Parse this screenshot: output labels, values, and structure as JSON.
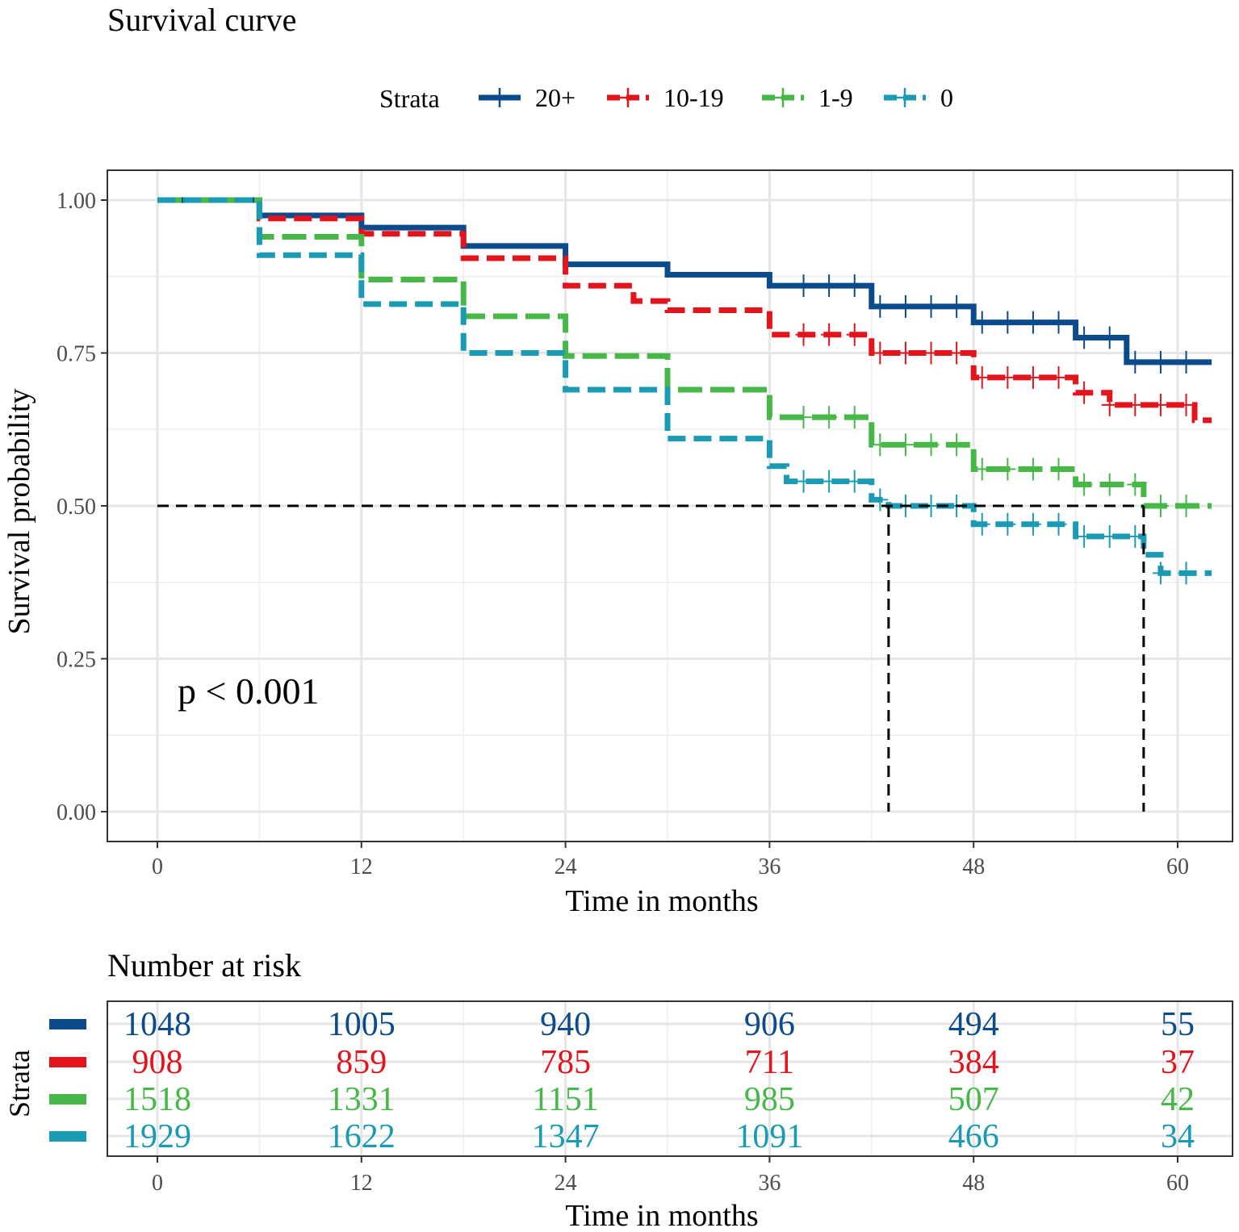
{
  "chart_data": [
    {
      "type": "line",
      "subtype": "kaplan-meier",
      "title": "Survival curve",
      "xlabel": "Time in months",
      "ylabel": "Survival probability",
      "xlim": [
        0,
        62
      ],
      "ylim": [
        0,
        1
      ],
      "xticks": [
        "0",
        "12",
        "24",
        "36",
        "48",
        "60"
      ],
      "yticks": [
        "0.00",
        "0.25",
        "0.50",
        "0.75",
        "1.00"
      ],
      "grid": true,
      "legend": {
        "title": "Strata",
        "position": "top"
      },
      "annotation": "p < 0.001",
      "median_reference": {
        "y": 0.5,
        "x_values": [
          43,
          58
        ]
      },
      "series": [
        {
          "name": "20+",
          "color": "#0b4a8b",
          "dash": "solid",
          "x": [
            0,
            6,
            12,
            18,
            24,
            30,
            36,
            42,
            48,
            54,
            57,
            62
          ],
          "y": [
            1.0,
            0.975,
            0.955,
            0.925,
            0.895,
            0.878,
            0.86,
            0.826,
            0.8,
            0.775,
            0.735,
            0.735
          ]
        },
        {
          "name": "10-19",
          "color": "#e3141c",
          "dash": "dashed",
          "x": [
            0,
            6,
            12,
            18,
            24,
            28,
            30,
            36,
            42,
            48,
            54,
            56,
            60,
            61,
            62
          ],
          "y": [
            1.0,
            0.97,
            0.945,
            0.905,
            0.86,
            0.835,
            0.82,
            0.78,
            0.75,
            0.71,
            0.685,
            0.665,
            0.665,
            0.64,
            0.64
          ]
        },
        {
          "name": "1-9",
          "color": "#47b848",
          "dash": "longdash",
          "x": [
            0,
            6,
            12,
            18,
            24,
            30,
            36,
            42,
            48,
            54,
            58,
            62
          ],
          "y": [
            1.0,
            0.94,
            0.87,
            0.81,
            0.745,
            0.69,
            0.645,
            0.6,
            0.56,
            0.535,
            0.5,
            0.5
          ]
        },
        {
          "name": "0",
          "color": "#1b9ab3",
          "dash": "dashed",
          "x": [
            0,
            6,
            12,
            18,
            24,
            30,
            36,
            37,
            42,
            43,
            48,
            54,
            58,
            59,
            62
          ],
          "y": [
            1.0,
            0.91,
            0.83,
            0.75,
            0.69,
            0.61,
            0.565,
            0.54,
            0.51,
            0.5,
            0.47,
            0.45,
            0.42,
            0.39,
            0.39
          ]
        }
      ]
    },
    {
      "type": "table",
      "title": "Number at risk",
      "xlabel": "Time in months",
      "ylabel": "Strata",
      "xticks": [
        "0",
        "12",
        "24",
        "36",
        "48",
        "60"
      ],
      "x": [
        0,
        12,
        24,
        36,
        48,
        60
      ],
      "rows": [
        {
          "name": "20+",
          "color": "#0b4a8b",
          "values": [
            "1048",
            "1005",
            "940",
            "906",
            "494",
            "55"
          ]
        },
        {
          "name": "10-19",
          "color": "#e3141c",
          "values": [
            "908",
            "859",
            "785",
            "711",
            "384",
            "37"
          ]
        },
        {
          "name": "1-9",
          "color": "#47b848",
          "values": [
            "1518",
            "1331",
            "1151",
            "985",
            "507",
            "42"
          ]
        },
        {
          "name": "0",
          "color": "#1b9ab3",
          "values": [
            "1929",
            "1622",
            "1347",
            "1091",
            "466",
            "34"
          ]
        }
      ]
    }
  ]
}
